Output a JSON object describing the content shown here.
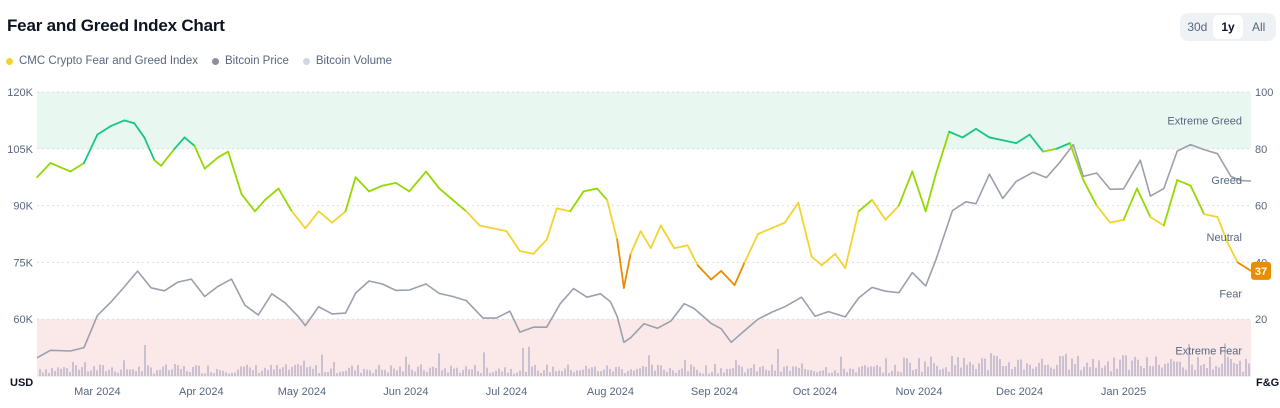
{
  "header": {
    "title": "Fear and Greed Index Chart",
    "ranges": [
      "30d",
      "1y",
      "All"
    ],
    "active_range": "1y"
  },
  "legend": [
    {
      "label": "CMC Crypto Fear and Greed Index",
      "color": "#f3d42f"
    },
    {
      "label": "Bitcoin Price",
      "color": "#8a8f9c"
    },
    {
      "label": "Bitcoin Volume",
      "color": "#cfd6e4"
    }
  ],
  "colors": {
    "extreme_greed": "#16c784",
    "greed": "#93d900",
    "neutral": "#f3d42f",
    "fear": "#ea8c00",
    "extreme_fear": "#ea3943",
    "price_line": "#9aa0ad",
    "volume_bar": "#c9c0d2",
    "greed_zone_fill": "#e8f7f0",
    "fear_zone_fill": "#fbe9ea"
  },
  "chart_data": {
    "type": "line",
    "left_axis": {
      "unit": "USD",
      "ticks": [
        "120K",
        "105K",
        "90K",
        "75K",
        "60K"
      ],
      "tick_values": [
        120000,
        105000,
        90000,
        75000,
        60000
      ],
      "range": [
        45000,
        120000
      ]
    },
    "right_axis": {
      "unit": "F&G",
      "ticks": [
        "100",
        "80",
        "60",
        "40",
        "20"
      ],
      "tick_values": [
        100,
        80,
        60,
        40,
        20
      ],
      "range": [
        0,
        100
      ]
    },
    "x_ticks": [
      "Mar 2024",
      "Apr 2024",
      "May 2024",
      "Jun 2024",
      "Jul 2024",
      "Aug 2024",
      "Sep 2024",
      "Oct 2024",
      "Nov 2024",
      "Dec 2024",
      "Jan 2025"
    ],
    "zones": [
      {
        "label": "Extreme Greed",
        "from": 80,
        "to": 100
      },
      {
        "label": "Greed",
        "value": 69
      },
      {
        "label": "Neutral",
        "value": 49
      },
      {
        "label": "Fear",
        "value": 29
      },
      {
        "label": "Extreme Fear",
        "from": 0,
        "to": 20
      }
    ],
    "current_value": 37,
    "fear_greed_index": [
      [
        "2024-02-12",
        70
      ],
      [
        "2024-02-16",
        75
      ],
      [
        "2024-02-22",
        72
      ],
      [
        "2024-02-26",
        75
      ],
      [
        "2024-03-01",
        85
      ],
      [
        "2024-03-05",
        88
      ],
      [
        "2024-03-09",
        90
      ],
      [
        "2024-03-12",
        89
      ],
      [
        "2024-03-15",
        84
      ],
      [
        "2024-03-18",
        76
      ],
      [
        "2024-03-20",
        74
      ],
      [
        "2024-03-24",
        80
      ],
      [
        "2024-03-27",
        84
      ],
      [
        "2024-03-30",
        81
      ],
      [
        "2024-04-02",
        73
      ],
      [
        "2024-04-06",
        77
      ],
      [
        "2024-04-09",
        79
      ],
      [
        "2024-04-13",
        64
      ],
      [
        "2024-04-17",
        58
      ],
      [
        "2024-04-20",
        62
      ],
      [
        "2024-04-24",
        66
      ],
      [
        "2024-04-28",
        58
      ],
      [
        "2024-05-02",
        52
      ],
      [
        "2024-05-06",
        58
      ],
      [
        "2024-05-10",
        54
      ],
      [
        "2024-05-14",
        58
      ],
      [
        "2024-05-17",
        70
      ],
      [
        "2024-05-21",
        65
      ],
      [
        "2024-05-25",
        67
      ],
      [
        "2024-05-29",
        68
      ],
      [
        "2024-06-02",
        65
      ],
      [
        "2024-06-07",
        72
      ],
      [
        "2024-06-11",
        66
      ],
      [
        "2024-06-15",
        62
      ],
      [
        "2024-06-19",
        58
      ],
      [
        "2024-06-23",
        53
      ],
      [
        "2024-06-27",
        52
      ],
      [
        "2024-07-01",
        51
      ],
      [
        "2024-07-05",
        44
      ],
      [
        "2024-07-09",
        43
      ],
      [
        "2024-07-13",
        48
      ],
      [
        "2024-07-16",
        59
      ],
      [
        "2024-07-20",
        58
      ],
      [
        "2024-07-24",
        65
      ],
      [
        "2024-07-28",
        66
      ],
      [
        "2024-07-31",
        62
      ],
      [
        "2024-08-03",
        48
      ],
      [
        "2024-08-05",
        31
      ],
      [
        "2024-08-07",
        43
      ],
      [
        "2024-08-10",
        51
      ],
      [
        "2024-08-13",
        45
      ],
      [
        "2024-08-16",
        53
      ],
      [
        "2024-08-20",
        45
      ],
      [
        "2024-08-24",
        46
      ],
      [
        "2024-08-27",
        39
      ],
      [
        "2024-08-31",
        34
      ],
      [
        "2024-09-03",
        37
      ],
      [
        "2024-09-07",
        32
      ],
      [
        "2024-09-10",
        40
      ],
      [
        "2024-09-14",
        50
      ],
      [
        "2024-09-18",
        52
      ],
      [
        "2024-09-22",
        54
      ],
      [
        "2024-09-26",
        61
      ],
      [
        "2024-09-30",
        42
      ],
      [
        "2024-10-03",
        39
      ],
      [
        "2024-10-07",
        43
      ],
      [
        "2024-10-10",
        38
      ],
      [
        "2024-10-14",
        58
      ],
      [
        "2024-10-18",
        62
      ],
      [
        "2024-10-22",
        55
      ],
      [
        "2024-10-26",
        60
      ],
      [
        "2024-10-30",
        72
      ],
      [
        "2024-11-03",
        58
      ],
      [
        "2024-11-06",
        71
      ],
      [
        "2024-11-10",
        86
      ],
      [
        "2024-11-14",
        84
      ],
      [
        "2024-11-18",
        87
      ],
      [
        "2024-11-22",
        84
      ],
      [
        "2024-11-26",
        83
      ],
      [
        "2024-11-30",
        82
      ],
      [
        "2024-12-04",
        85
      ],
      [
        "2024-12-08",
        79
      ],
      [
        "2024-12-12",
        80
      ],
      [
        "2024-12-16",
        82
      ],
      [
        "2024-12-20",
        69
      ],
      [
        "2024-12-24",
        60
      ],
      [
        "2024-12-28",
        54
      ],
      [
        "2025-01-01",
        55
      ],
      [
        "2025-01-05",
        66
      ],
      [
        "2025-01-09",
        56
      ],
      [
        "2025-01-13",
        53
      ],
      [
        "2025-01-17",
        69
      ],
      [
        "2025-01-21",
        67
      ],
      [
        "2025-01-25",
        57
      ],
      [
        "2025-01-29",
        56
      ],
      [
        "2025-02-01",
        47
      ],
      [
        "2025-02-04",
        40
      ],
      [
        "2025-02-08",
        37
      ]
    ],
    "bitcoin_price": [
      [
        "2024-02-12",
        49800
      ],
      [
        "2024-02-16",
        51800
      ],
      [
        "2024-02-22",
        51600
      ],
      [
        "2024-02-26",
        52500
      ],
      [
        "2024-03-01",
        61000
      ],
      [
        "2024-03-05",
        64500
      ],
      [
        "2024-03-09",
        68500
      ],
      [
        "2024-03-13",
        72700
      ],
      [
        "2024-03-17",
        68300
      ],
      [
        "2024-03-21",
        67500
      ],
      [
        "2024-03-25",
        69800
      ],
      [
        "2024-03-29",
        70600
      ],
      [
        "2024-04-02",
        66000
      ],
      [
        "2024-04-06",
        68700
      ],
      [
        "2024-04-10",
        70600
      ],
      [
        "2024-04-14",
        63700
      ],
      [
        "2024-04-18",
        61100
      ],
      [
        "2024-04-22",
        66700
      ],
      [
        "2024-04-26",
        64300
      ],
      [
        "2024-04-30",
        60600
      ],
      [
        "2024-05-02",
        58300
      ],
      [
        "2024-05-06",
        63300
      ],
      [
        "2024-05-10",
        61400
      ],
      [
        "2024-05-14",
        61600
      ],
      [
        "2024-05-17",
        66900
      ],
      [
        "2024-05-21",
        70100
      ],
      [
        "2024-05-25",
        69300
      ],
      [
        "2024-05-29",
        67600
      ],
      [
        "2024-06-02",
        67700
      ],
      [
        "2024-06-07",
        69300
      ],
      [
        "2024-06-11",
        66800
      ],
      [
        "2024-06-15",
        66000
      ],
      [
        "2024-06-19",
        64900
      ],
      [
        "2024-06-24",
        60300
      ],
      [
        "2024-06-28",
        60300
      ],
      [
        "2024-07-02",
        62100
      ],
      [
        "2024-07-05",
        56600
      ],
      [
        "2024-07-09",
        57900
      ],
      [
        "2024-07-13",
        57900
      ],
      [
        "2024-07-17",
        64100
      ],
      [
        "2024-07-21",
        68100
      ],
      [
        "2024-07-25",
        65800
      ],
      [
        "2024-07-29",
        66700
      ],
      [
        "2024-08-01",
        64600
      ],
      [
        "2024-08-03",
        60700
      ],
      [
        "2024-08-05",
        53900
      ],
      [
        "2024-08-07",
        55100
      ],
      [
        "2024-08-11",
        58800
      ],
      [
        "2024-08-15",
        57600
      ],
      [
        "2024-08-19",
        59500
      ],
      [
        "2024-08-23",
        64100
      ],
      [
        "2024-08-26",
        62800
      ],
      [
        "2024-08-31",
        58900
      ],
      [
        "2024-09-03",
        57500
      ],
      [
        "2024-09-06",
        53900
      ],
      [
        "2024-09-10",
        57000
      ],
      [
        "2024-09-14",
        60000
      ],
      [
        "2024-09-18",
        61800
      ],
      [
        "2024-09-22",
        63300
      ],
      [
        "2024-09-27",
        65800
      ],
      [
        "2024-10-01",
        60800
      ],
      [
        "2024-10-05",
        62000
      ],
      [
        "2024-10-10",
        60600
      ],
      [
        "2024-10-14",
        65600
      ],
      [
        "2024-10-18",
        68400
      ],
      [
        "2024-10-22",
        67400
      ],
      [
        "2024-10-26",
        67000
      ],
      [
        "2024-10-30",
        72300
      ],
      [
        "2024-11-03",
        68800
      ],
      [
        "2024-11-06",
        75600
      ],
      [
        "2024-11-11",
        88700
      ],
      [
        "2024-11-15",
        91000
      ],
      [
        "2024-11-18",
        90500
      ],
      [
        "2024-11-22",
        98300
      ],
      [
        "2024-11-26",
        91900
      ],
      [
        "2024-11-30",
        96400
      ],
      [
        "2024-12-05",
        98800
      ],
      [
        "2024-12-09",
        97400
      ],
      [
        "2024-12-13",
        101400
      ],
      [
        "2024-12-17",
        106100
      ],
      [
        "2024-12-20",
        97700
      ],
      [
        "2024-12-24",
        98600
      ],
      [
        "2024-12-28",
        94300
      ],
      [
        "2025-01-01",
        94400
      ],
      [
        "2025-01-06",
        102000
      ],
      [
        "2025-01-09",
        92500
      ],
      [
        "2025-01-13",
        94500
      ],
      [
        "2025-01-17",
        104400
      ],
      [
        "2025-01-21",
        106100
      ],
      [
        "2025-01-25",
        104800
      ],
      [
        "2025-01-29",
        103700
      ],
      [
        "2025-02-02",
        97700
      ],
      [
        "2025-02-05",
        96600
      ],
      [
        "2025-02-08",
        96500
      ]
    ]
  }
}
